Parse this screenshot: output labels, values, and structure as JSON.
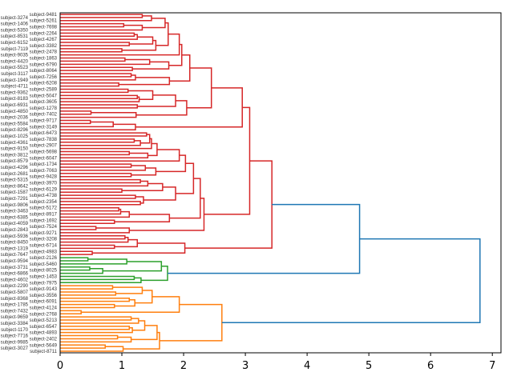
{
  "chart_data": {
    "type": "dendrogram",
    "orientation": "right",
    "title": "",
    "xlabel": "",
    "ylabel": "",
    "xlim": [
      0,
      7.14
    ],
    "xticks": [
      0,
      1,
      2,
      3,
      4,
      5,
      6,
      7
    ],
    "above_threshold_color": "#1f77b4",
    "cluster_colors": [
      "#d62728",
      "#2ca02c",
      "#ff7f0e"
    ],
    "tree_format": "[merge_height, child_a, child_b, optional_color]; 0 = leaf (labels assigned top to bottom)",
    "tree": [
      6.8,
      [
        4.85,
        [
          3.43,
          [
            3.07,
            [
              2.95,
              [
                2.45,
                [
                  2.1,
                  [
                    1.97,
                    [
                      1.93,
                      [
                        1.75,
                        [
                          1.7,
                          [
                            1.48,
                            [
                              1.33,
                              0,
                              0
                            ],
                            0
                          ],
                          [
                            1.33,
                            [
                              1.03,
                              0,
                              0
                            ],
                            0
                          ]
                        ],
                        [
                          1.55,
                          [
                            1.5,
                            [
                              1.25,
                              [
                                1.2,
                                0,
                                0
                              ],
                              0
                            ],
                            [
                              1.12,
                              0,
                              0
                            ]
                          ],
                          [
                            1.0,
                            0,
                            0
                          ]
                        ]
                      ],
                      0
                    ],
                    [
                      1.76,
                      [
                        1.45,
                        [
                          1.05,
                          0,
                          0
                        ],
                        0
                      ],
                      [
                        1.17,
                        0,
                        0
                      ]
                    ]
                  ],
                  [
                    1.77,
                    [
                      1.22,
                      [
                        1.15,
                        0,
                        0
                      ],
                      0
                    ],
                    [
                      0.95,
                      0,
                      0
                    ]
                  ]
                ],
                [
                  2.05,
                  [
                    1.87,
                    [
                      1.5,
                      [
                        1.1,
                        0,
                        0
                      ],
                      [
                        1.28,
                        [
                          1.25,
                          0,
                          0
                        ],
                        0
                      ]
                    ],
                    [
                      1.25,
                      0,
                      0
                    ]
                  ],
                  [
                    1.23,
                    [
                      0.5,
                      0,
                      0
                    ],
                    0
                  ]
                ]
              ],
              [
                1.22,
                [
                  0.86,
                  [
                    0.49,
                    0,
                    0
                  ],
                  0
                ],
                0
              ]
            ],
            [
              2.33,
              [
                2.27,
                [
                  2.16,
                  [
                    2.03,
                    [
                      1.93,
                      [
                        1.57,
                        [
                          1.48,
                          [
                            1.45,
                            [
                              1.4,
                              0,
                              0
                            ],
                            [
                              1.3,
                              [
                                1.2,
                                0,
                                0
                              ],
                              0
                            ]
                          ],
                          0
                        ],
                        [
                          1.42,
                          [
                            1.12,
                            0,
                            0
                          ],
                          0
                        ]
                      ],
                      0
                    ],
                    [
                      1.55,
                      [
                        1.38,
                        [
                          1.15,
                          0,
                          0
                        ],
                        0
                      ],
                      [
                        1.15,
                        0,
                        0
                      ]
                    ]
                  ],
                  [
                    1.87,
                    [
                      1.66,
                      [
                        1.42,
                        [
                          1.3,
                          0,
                          0
                        ],
                        0
                      ],
                      [
                        1.0,
                        0,
                        0
                      ]
                    ],
                    [
                      1.35,
                      [
                        1.22,
                        0,
                        0
                      ],
                      [
                        1.3,
                        0,
                        0
                      ]
                    ]
                  ]
                ],
                [
                  1.77,
                  [
                    1.12,
                    [
                      0.98,
                      [
                        0.95,
                        0,
                        0
                      ],
                      0
                    ],
                    0
                  ],
                  [
                    0.88,
                    0,
                    0
                  ]
                ]
              ],
              [
                1.12,
                [
                  0.58,
                  0,
                  0
                ],
                0
              ]
            ]
          ],
          [
            2.02,
            [
              1.25,
              [
                1.1,
                [
                  1.05,
                  0,
                  0
                ],
                0
              ],
              [
                0.88,
                0,
                0
              ]
            ],
            [
              0.52,
              0,
              0
            ]
          ],
          "#d62728"
        ],
        [
          1.74,
          [
            1.64,
            [
              1.08,
              [
                0.45,
                0,
                0
              ],
              0
            ],
            [
              0.69,
              [
                0.48,
                0,
                0
              ],
              0
            ]
          ],
          [
            1.31,
            [
              1.2,
              0,
              0
            ],
            0
          ],
          "#2ca02c"
        ]
      ],
      [
        2.62,
        [
          1.93,
          [
            1.49,
            [
              1.33,
              [
                0.85,
                0,
                0
              ],
              [
                0.9,
                0,
                0
              ]
            ],
            [
              1.21,
              [
                1.12,
                0,
                0
              ],
              [
                0.88,
                0,
                0
              ]
            ]
          ],
          [
            0.34,
            0,
            0
          ]
        ],
        [
          1.61,
          [
            1.57,
            [
              1.37,
              [
                1.27,
                [
                  1.15,
                  0,
                  0
                ],
                0
              ],
              [
                1.17,
                [
                  1.12,
                  0,
                  0
                ],
                0
              ]
            ],
            [
              1.15,
              [
                0.93,
                0,
                0
              ],
              0
            ]
          ],
          [
            1.02,
            [
              0.73,
              0,
              0
            ],
            0
          ]
        ],
        "#ff7f0e"
      ],
      "#1f77b4"
    ],
    "leaf_labels": [
      "subject-9481",
      "subject-3274",
      "subject-5261",
      "subject-1406",
      "subject-7698",
      "subject-5350",
      "subject-2264",
      "subject-8531",
      "subject-4267",
      "subject-6152",
      "subject-3382",
      "subject-7119",
      "subject-2478",
      "subject-9035",
      "subject-1863",
      "subject-4420",
      "subject-6790",
      "subject-5523",
      "subject-8064",
      "subject-3117",
      "subject-7256",
      "subject-1949",
      "subject-6208",
      "subject-4711",
      "subject-2589",
      "subject-9362",
      "subject-5047",
      "subject-8183",
      "subject-3605",
      "subject-6931",
      "subject-1278",
      "subject-4850",
      "subject-7402",
      "subject-2036",
      "subject-9717",
      "subject-5584",
      "subject-3149",
      "subject-8296",
      "subject-6473",
      "subject-1025",
      "subject-7838",
      "subject-4361",
      "subject-2907",
      "subject-9150",
      "subject-5698",
      "subject-3812",
      "subject-6047",
      "subject-8579",
      "subject-1734",
      "subject-4296",
      "subject-7063",
      "subject-2681",
      "subject-9428",
      "subject-5315",
      "subject-3970",
      "subject-8642",
      "subject-6129",
      "subject-1587",
      "subject-4738",
      "subject-7291",
      "subject-2354",
      "subject-9806",
      "subject-5172",
      "subject-3463",
      "subject-8917",
      "subject-6385",
      "subject-1692",
      "subject-4059",
      "subject-7524",
      "subject-2843",
      "subject-9271",
      "subject-5936",
      "subject-3208",
      "subject-8450",
      "subject-6714",
      "subject-1319",
      "subject-4983",
      "subject-7647",
      "subject-2126",
      "subject-9594",
      "subject-5460",
      "subject-3731",
      "subject-8025",
      "subject-6866",
      "subject-1453",
      "subject-4602",
      "subject-7975",
      "subject-2290",
      "subject-9143",
      "subject-5807",
      "subject-3556",
      "subject-8368",
      "subject-6091",
      "subject-1785",
      "subject-4124",
      "subject-7432",
      "subject-2768",
      "subject-9659",
      "subject-5213",
      "subject-3384",
      "subject-6547",
      "subject-1170",
      "subject-4893",
      "subject-7716",
      "subject-2402",
      "subject-9985",
      "subject-5649",
      "subject-3027",
      "subject-8711"
    ]
  }
}
